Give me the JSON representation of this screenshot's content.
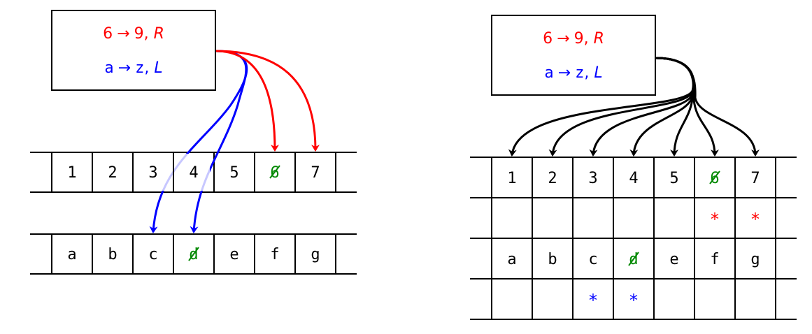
{
  "colors": {
    "red": "#ff0000",
    "blue": "#0000ff",
    "green": "#008800",
    "ink": "#000000",
    "fade": "#c9c9f4"
  },
  "left": {
    "rule_box": {
      "rule1": {
        "from": "6",
        "arrow": "→",
        "to": "9",
        "move": "R"
      },
      "rule2": {
        "from": "a",
        "arrow": "→",
        "to": "z",
        "move": "L"
      }
    },
    "tape_top": [
      "1",
      "2",
      "3",
      "4",
      "5",
      "6",
      "7"
    ],
    "tape_bottom": [
      "a",
      "b",
      "c",
      "d",
      "e",
      "f",
      "g"
    ],
    "struck": {
      "top": "6",
      "bottom": "d"
    }
  },
  "right": {
    "rule_box": {
      "rule1": {
        "from": "6",
        "arrow": "→",
        "to": "9",
        "move": "R"
      },
      "rule2": {
        "from": "a",
        "arrow": "→",
        "to": "z",
        "move": "L"
      }
    },
    "row_numbers": [
      "1",
      "2",
      "3",
      "4",
      "5",
      "6",
      "7"
    ],
    "row_marks_red": [
      "",
      "",
      "",
      "",
      "",
      "*",
      "*"
    ],
    "row_letters": [
      "a",
      "b",
      "c",
      "d",
      "e",
      "f",
      "g"
    ],
    "row_marks_blue": [
      "",
      "",
      "*",
      "*",
      "",
      "",
      ""
    ],
    "struck": {
      "top": "6",
      "bottom": "d"
    }
  }
}
